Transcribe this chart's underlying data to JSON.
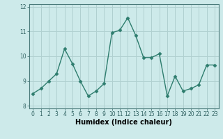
{
  "x": [
    0,
    1,
    2,
    3,
    4,
    5,
    6,
    7,
    8,
    9,
    10,
    11,
    12,
    13,
    14,
    15,
    16,
    17,
    18,
    19,
    20,
    21,
    22,
    23
  ],
  "y": [
    8.5,
    8.7,
    9.0,
    9.3,
    10.3,
    9.7,
    9.0,
    8.4,
    8.6,
    8.9,
    10.95,
    11.05,
    11.55,
    10.85,
    9.95,
    9.95,
    10.1,
    8.4,
    9.2,
    8.6,
    8.7,
    8.85,
    9.65,
    9.65
  ],
  "line_color": "#2e7d6e",
  "marker": "D",
  "marker_size": 2.5,
  "line_width": 1.0,
  "bg_color": "#cdeaea",
  "grid_color": "#b0d0d0",
  "xlabel": "Humidex (Indice chaleur)",
  "ylim": [
    7.9,
    12.1
  ],
  "xlim": [
    -0.5,
    23.5
  ],
  "yticks": [
    8,
    9,
    10,
    11,
    12
  ],
  "xticks": [
    0,
    1,
    2,
    3,
    4,
    5,
    6,
    7,
    8,
    9,
    10,
    11,
    12,
    13,
    14,
    15,
    16,
    17,
    18,
    19,
    20,
    21,
    22,
    23
  ],
  "tick_fontsize": 5.5,
  "xlabel_fontsize": 7.0
}
